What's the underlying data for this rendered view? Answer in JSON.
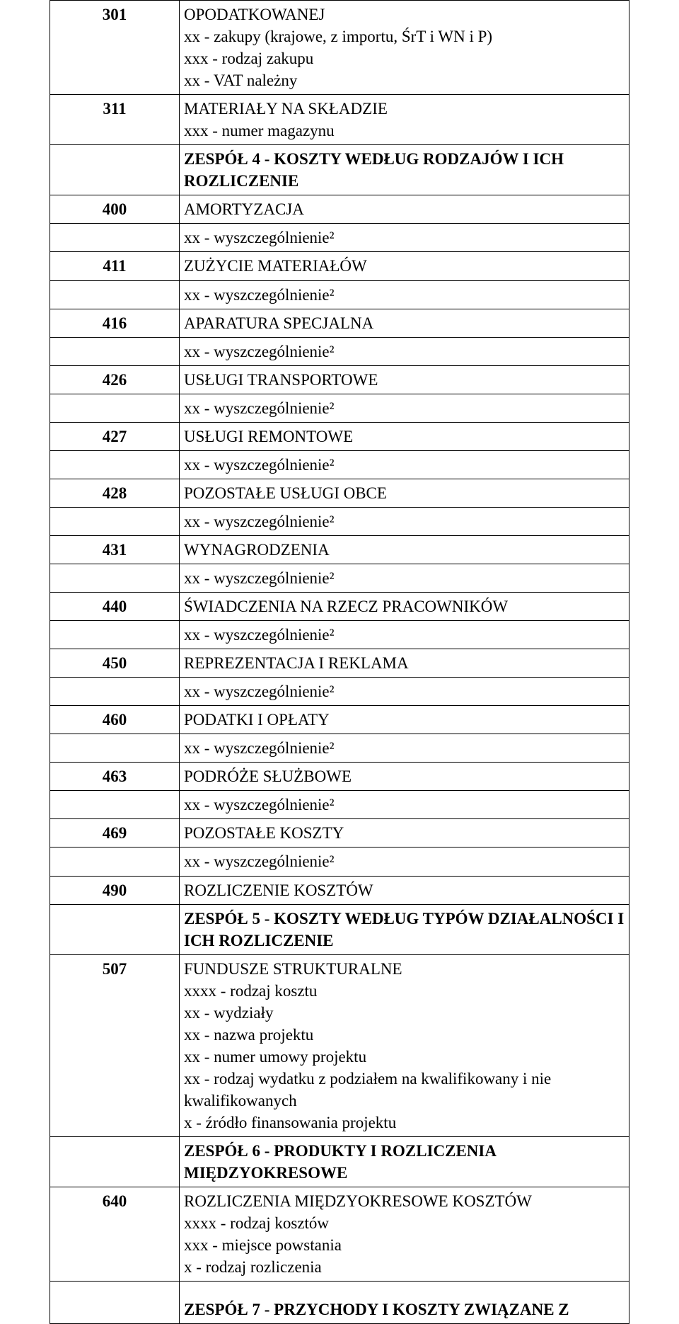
{
  "rows": [
    {
      "code": "301",
      "lines": [
        "OPODATKOWANEJ",
        "xx - zakupy (krajowe, z importu, ŚrT i WN i P)",
        "xxx - rodzaj zakupu",
        "xx - VAT należny"
      ],
      "bold": [
        false,
        false,
        false,
        false
      ]
    },
    {
      "code": "311",
      "lines": [
        "MATERIAŁY NA SKŁADZIE",
        "xxx - numer magazynu"
      ],
      "bold": [
        false,
        false
      ]
    },
    {
      "code": "",
      "lines": [
        "ZESPÓŁ 4 - KOSZTY WEDŁUG RODZAJÓW I ICH ROZLICZENIE"
      ],
      "bold": [
        true
      ]
    },
    {
      "code": "400",
      "lines": [
        "AMORTYZACJA"
      ],
      "bold": [
        false
      ]
    },
    {
      "code": "",
      "lines": [
        "xx - wyszczególnienie²"
      ],
      "bold": [
        false
      ]
    },
    {
      "code": "411",
      "lines": [
        "ZUŻYCIE MATERIAŁÓW"
      ],
      "bold": [
        false
      ]
    },
    {
      "code": "",
      "lines": [
        "xx - wyszczególnienie²"
      ],
      "bold": [
        false
      ]
    },
    {
      "code": "416",
      "lines": [
        "APARATURA SPECJALNA"
      ],
      "bold": [
        false
      ]
    },
    {
      "code": "",
      "lines": [
        "xx - wyszczególnienie²"
      ],
      "bold": [
        false
      ]
    },
    {
      "code": "426",
      "lines": [
        "USŁUGI TRANSPORTOWE"
      ],
      "bold": [
        false
      ]
    },
    {
      "code": "",
      "lines": [
        "xx - wyszczególnienie²"
      ],
      "bold": [
        false
      ]
    },
    {
      "code": "427",
      "lines": [
        "USŁUGI REMONTOWE"
      ],
      "bold": [
        false
      ]
    },
    {
      "code": "",
      "lines": [
        "xx - wyszczególnienie²"
      ],
      "bold": [
        false
      ]
    },
    {
      "code": "428",
      "lines": [
        "POZOSTAŁE USŁUGI OBCE"
      ],
      "bold": [
        false
      ]
    },
    {
      "code": "",
      "lines": [
        "xx - wyszczególnienie²"
      ],
      "bold": [
        false
      ]
    },
    {
      "code": "431",
      "lines": [
        "WYNAGRODZENIA"
      ],
      "bold": [
        false
      ]
    },
    {
      "code": "",
      "lines": [
        "xx - wyszczególnienie²"
      ],
      "bold": [
        false
      ]
    },
    {
      "code": "440",
      "lines": [
        "ŚWIADCZENIA NA RZECZ PRACOWNIKÓW"
      ],
      "bold": [
        false
      ]
    },
    {
      "code": "",
      "lines": [
        "xx - wyszczególnienie²"
      ],
      "bold": [
        false
      ]
    },
    {
      "code": "450",
      "lines": [
        "REPREZENTACJA I REKLAMA"
      ],
      "bold": [
        false
      ]
    },
    {
      "code": "",
      "lines": [
        "xx - wyszczególnienie²"
      ],
      "bold": [
        false
      ]
    },
    {
      "code": "460",
      "lines": [
        "PODATKI I OPŁATY"
      ],
      "bold": [
        false
      ]
    },
    {
      "code": "",
      "lines": [
        "xx - wyszczególnienie²"
      ],
      "bold": [
        false
      ]
    },
    {
      "code": "463",
      "lines": [
        "PODRÓŻE SŁUŻBOWE"
      ],
      "bold": [
        false
      ]
    },
    {
      "code": "",
      "lines": [
        "xx - wyszczególnienie²"
      ],
      "bold": [
        false
      ]
    },
    {
      "code": "469",
      "lines": [
        "POZOSTAŁE KOSZTY"
      ],
      "bold": [
        false
      ]
    },
    {
      "code": "",
      "lines": [
        "xx - wyszczególnienie²"
      ],
      "bold": [
        false
      ]
    },
    {
      "code": "490",
      "lines": [
        "ROZLICZENIE KOSZTÓW"
      ],
      "bold": [
        false
      ]
    },
    {
      "code": "",
      "lines": [
        "ZESPÓŁ 5 - KOSZTY WEDŁUG TYPÓW DZIAŁALNOŚCI I ICH ROZLICZENIE"
      ],
      "bold": [
        true
      ]
    },
    {
      "code": "507",
      "lines": [
        "FUNDUSZE STRUKTURALNE",
        "xxxx - rodzaj kosztu",
        "xx - wydziały",
        "xx - nazwa projektu",
        "xx - numer umowy projektu",
        "xx - rodzaj wydatku z podziałem na kwalifikowany i nie kwalifikowanych",
        "x - źródło finansowania projektu"
      ],
      "bold": [
        false,
        false,
        false,
        false,
        false,
        false,
        false
      ]
    },
    {
      "code": "",
      "lines": [
        "ZESPÓŁ 6 - PRODUKTY I ROZLICZENIA MIĘDZYOKRESOWE"
      ],
      "bold": [
        true
      ]
    },
    {
      "code": "640",
      "lines": [
        "ROZLICZENIA MIĘDZYOKRESOWE KOSZTÓW",
        "xxxx - rodzaj kosztów",
        "xxx - miejsce powstania",
        "x - rodzaj rozliczenia"
      ],
      "bold": [
        false,
        false,
        false,
        false
      ]
    },
    {
      "code": "",
      "lines": [
        "ZESPÓŁ 7 - PRZYCHODY I KOSZTY ZWIĄZANE Z"
      ],
      "bold": [
        true
      ],
      "tall": true
    }
  ]
}
